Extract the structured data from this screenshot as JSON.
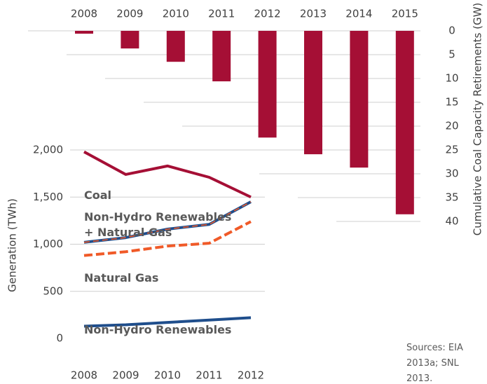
{
  "chart_data": [
    {
      "type": "bar",
      "categories": [
        "2008",
        "2009",
        "2010",
        "2011",
        "2012",
        "2013",
        "2014",
        "2015"
      ],
      "values": [
        0.6,
        3.7,
        6.5,
        10.6,
        22.4,
        25.9,
        28.7,
        38.5
      ],
      "color": "#a50f35",
      "axis": "y2",
      "y2_label": "Cumulative Coal Capacity Retirements (GW)",
      "y2lim": [
        0,
        40
      ],
      "y2ticks": [
        0,
        5,
        10,
        15,
        20,
        25,
        30,
        35,
        40
      ],
      "y2_inverted": true,
      "x_axis_position": "top",
      "grid": true
    },
    {
      "type": "line",
      "categories": [
        "2008",
        "2009",
        "2010",
        "2011",
        "2012"
      ],
      "y_label": "Generation (TWh)",
      "ylim": [
        0,
        2000
      ],
      "yticks": [
        0,
        500,
        {
          "value": 1000,
          "label": "1,000"
        },
        {
          "value": 1500,
          "label": "1,500"
        },
        {
          "value": 2000,
          "label": "2,000"
        }
      ],
      "grid": true,
      "series": [
        {
          "name": "Coal",
          "color": "#a50f35",
          "values": [
            1980,
            1740,
            1830,
            1710,
            1500
          ]
        },
        {
          "name": "Non-Hydro Renewables + Natural Gas",
          "color": "#1f4e8c",
          "dash_color": "#f05a28",
          "values": [
            1020,
            1070,
            1160,
            1210,
            1450
          ]
        },
        {
          "name": "Natural Gas",
          "color": "#f05a28",
          "dashed": true,
          "values": [
            880,
            920,
            980,
            1010,
            1240
          ]
        },
        {
          "name": "Non-Hydro Renewables",
          "color": "#1f4e8c",
          "values": [
            130,
            145,
            170,
            195,
            220
          ]
        }
      ]
    }
  ],
  "source": "Sources: EIA 2013a; SNL 2013."
}
